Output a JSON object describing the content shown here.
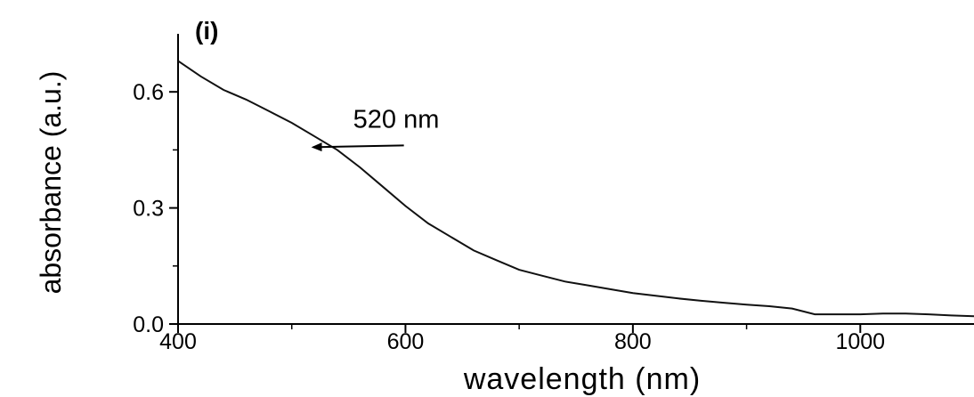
{
  "chart_data": {
    "type": "line",
    "panel_label": "(i)",
    "xlabel": "wavelength (nm)",
    "ylabel": "absorbance (a.u.)",
    "xlim": [
      400,
      1100
    ],
    "ylim": [
      0,
      0.75
    ],
    "xticks": [
      400,
      600,
      800,
      1000
    ],
    "xtick_labels": [
      "400",
      "600",
      "800",
      "1000"
    ],
    "yticks": [
      0.0,
      0.3,
      0.6
    ],
    "ytick_labels": [
      "0.0",
      "0.3",
      "0.6"
    ],
    "grid": false,
    "series": [
      {
        "x": [
          400,
          420,
          440,
          460,
          480,
          500,
          520,
          540,
          560,
          580,
          600,
          620,
          640,
          660,
          680,
          700,
          720,
          740,
          760,
          780,
          800,
          820,
          840,
          860,
          880,
          900,
          920,
          940,
          960,
          980,
          1000,
          1020,
          1040,
          1060,
          1080,
          1100
        ],
        "y": [
          0.68,
          0.64,
          0.605,
          0.58,
          0.55,
          0.52,
          0.485,
          0.45,
          0.405,
          0.355,
          0.305,
          0.26,
          0.225,
          0.19,
          0.165,
          0.14,
          0.125,
          0.11,
          0.1,
          0.09,
          0.08,
          0.073,
          0.066,
          0.06,
          0.055,
          0.05,
          0.046,
          0.04,
          0.025,
          0.025,
          0.025,
          0.027,
          0.027,
          0.025,
          0.022,
          0.02
        ]
      }
    ],
    "annotations": [
      {
        "text": "520 nm",
        "x": 525,
        "y": 0.48
      }
    ]
  }
}
